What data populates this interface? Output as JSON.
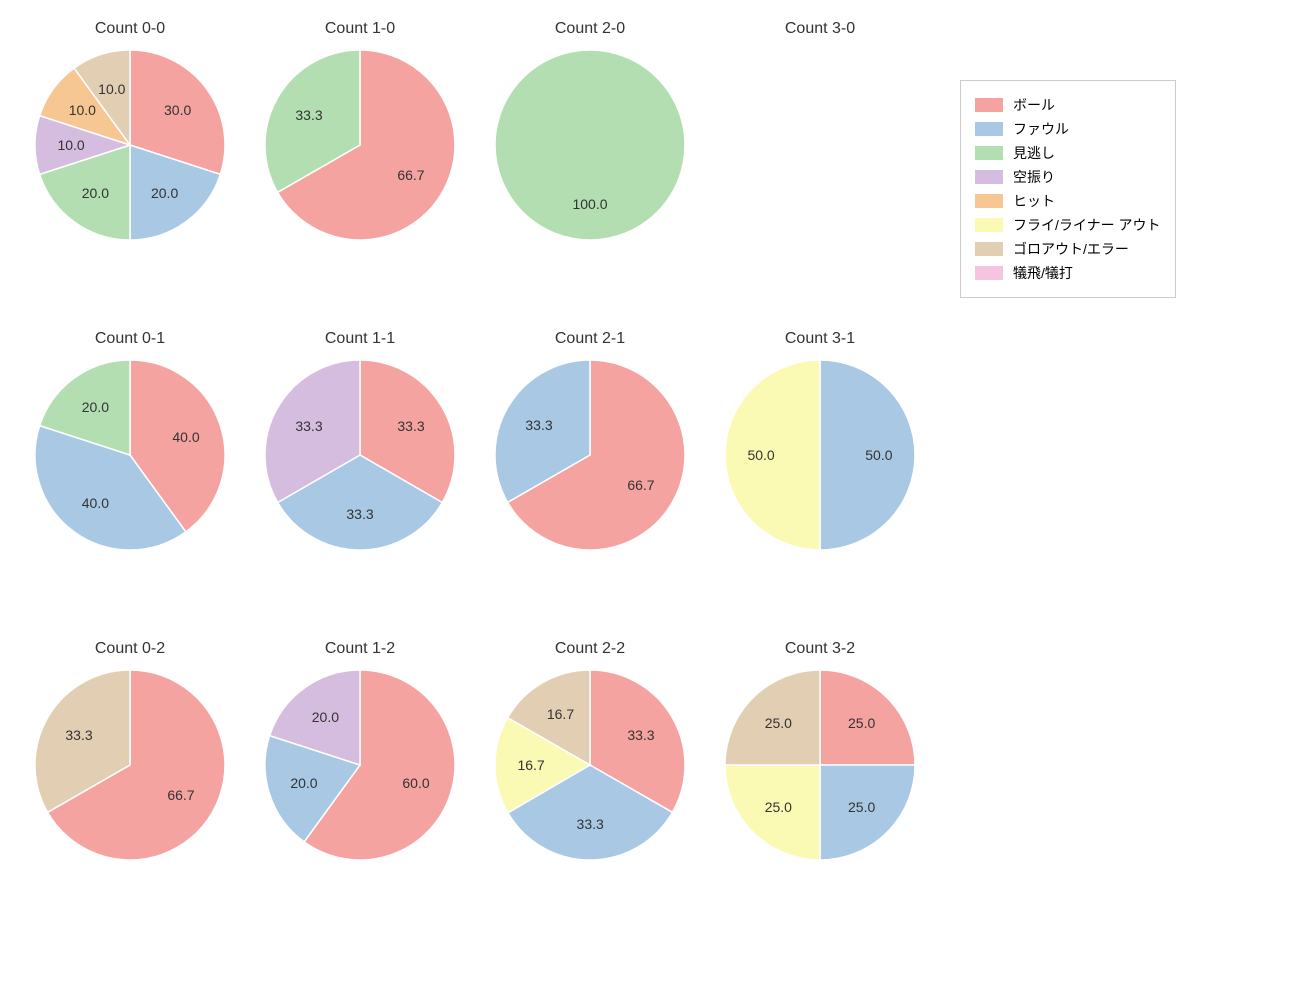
{
  "background_color": "#ffffff",
  "title_fontsize": 16,
  "label_fontsize": 14,
  "pie_radius": 95,
  "label_distance_factor": 0.62,
  "categories": [
    {
      "key": "ball",
      "label": "ボール",
      "color": "#f4a3a0"
    },
    {
      "key": "foul",
      "label": "ファウル",
      "color": "#a8c8e4"
    },
    {
      "key": "look",
      "label": "見逃し",
      "color": "#b3deb1"
    },
    {
      "key": "swing",
      "label": "空振り",
      "color": "#d4bdde"
    },
    {
      "key": "hit",
      "label": "ヒット",
      "color": "#f7c793"
    },
    {
      "key": "flyout",
      "label": "フライ/ライナー アウト",
      "color": "#fbfab4"
    },
    {
      "key": "groundout",
      "label": "ゴロアウト/エラー",
      "color": "#e2ceb3"
    },
    {
      "key": "sac",
      "label": "犠飛/犠打",
      "color": "#f5c4e0"
    }
  ],
  "charts": [
    {
      "title": "Count 0-0",
      "slices": [
        {
          "cat": "ball",
          "value": 30.0
        },
        {
          "cat": "foul",
          "value": 20.0
        },
        {
          "cat": "look",
          "value": 20.0
        },
        {
          "cat": "swing",
          "value": 10.0
        },
        {
          "cat": "hit",
          "value": 10.0
        },
        {
          "cat": "groundout",
          "value": 10.0
        }
      ]
    },
    {
      "title": "Count 1-0",
      "slices": [
        {
          "cat": "ball",
          "value": 66.7
        },
        {
          "cat": "look",
          "value": 33.3
        }
      ]
    },
    {
      "title": "Count 2-0",
      "slices": [
        {
          "cat": "look",
          "value": 100.0
        }
      ]
    },
    {
      "title": "Count 3-0",
      "slices": []
    },
    {
      "title": "Count 0-1",
      "slices": [
        {
          "cat": "ball",
          "value": 40.0
        },
        {
          "cat": "foul",
          "value": 40.0
        },
        {
          "cat": "look",
          "value": 20.0
        }
      ]
    },
    {
      "title": "Count 1-1",
      "slices": [
        {
          "cat": "ball",
          "value": 33.3
        },
        {
          "cat": "foul",
          "value": 33.3
        },
        {
          "cat": "swing",
          "value": 33.3
        }
      ]
    },
    {
      "title": "Count 2-1",
      "slices": [
        {
          "cat": "ball",
          "value": 66.7
        },
        {
          "cat": "foul",
          "value": 33.3
        }
      ]
    },
    {
      "title": "Count 3-1",
      "slices": [
        {
          "cat": "foul",
          "value": 50.0
        },
        {
          "cat": "flyout",
          "value": 50.0
        }
      ]
    },
    {
      "title": "Count 0-2",
      "slices": [
        {
          "cat": "ball",
          "value": 66.7
        },
        {
          "cat": "groundout",
          "value": 33.3
        }
      ]
    },
    {
      "title": "Count 1-2",
      "slices": [
        {
          "cat": "ball",
          "value": 60.0
        },
        {
          "cat": "foul",
          "value": 20.0
        },
        {
          "cat": "swing",
          "value": 20.0
        }
      ]
    },
    {
      "title": "Count 2-2",
      "slices": [
        {
          "cat": "ball",
          "value": 33.3
        },
        {
          "cat": "foul",
          "value": 33.3
        },
        {
          "cat": "flyout",
          "value": 16.7
        },
        {
          "cat": "groundout",
          "value": 16.7
        }
      ]
    },
    {
      "title": "Count 3-2",
      "slices": [
        {
          "cat": "ball",
          "value": 25.0
        },
        {
          "cat": "foul",
          "value": 25.0
        },
        {
          "cat": "flyout",
          "value": 25.0
        },
        {
          "cat": "groundout",
          "value": 25.0
        }
      ]
    }
  ]
}
